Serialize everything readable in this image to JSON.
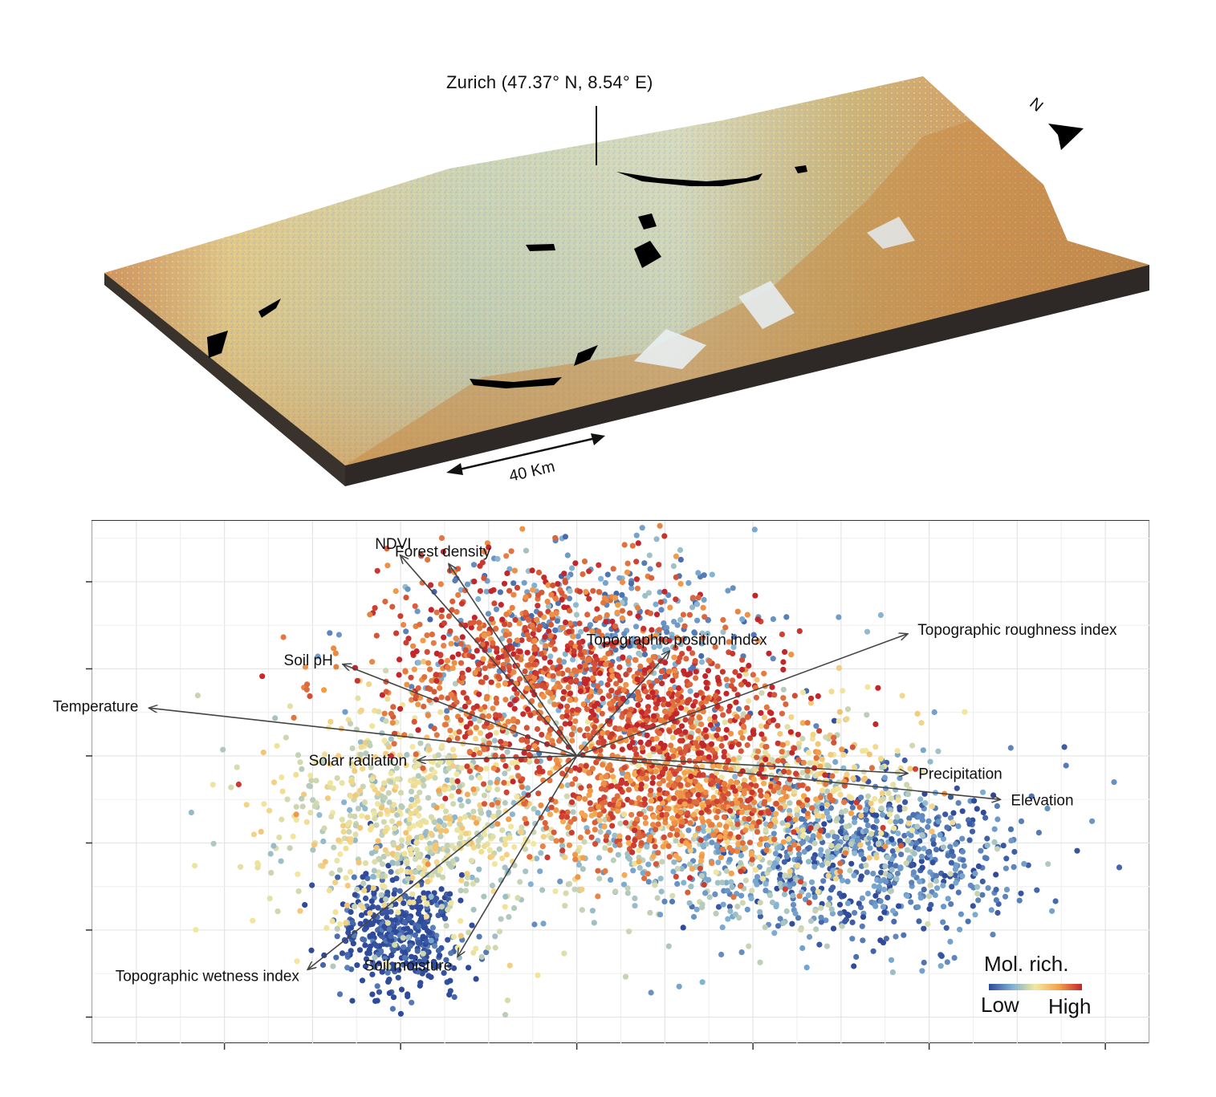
{
  "map": {
    "callout_label": "Zurich (47.37° N, 8.54° E)",
    "scale_label": "40 Km",
    "north_label": "N"
  },
  "legend": {
    "title": "Mol. rich.",
    "low_label": "Low",
    "high_label": "High",
    "colors": [
      "#2f4a9a",
      "#7fb0d4",
      "#f2e8a0",
      "#f4a24a",
      "#c2262b"
    ]
  },
  "chart_data": {
    "type": "scatter",
    "title": "",
    "xlabel": "",
    "ylabel": "",
    "xlim": [
      -5.5,
      6.5
    ],
    "ylim": [
      -3.3,
      2.7
    ],
    "grid": true,
    "origin": [
      0,
      0
    ],
    "vectors": [
      {
        "name": "NDVI",
        "x": -2.0,
        "y": 2.3
      },
      {
        "name": "Forest density",
        "x": -1.45,
        "y": 2.2
      },
      {
        "name": "Topographic position index",
        "x": 1.05,
        "y": 1.2
      },
      {
        "name": "Topographic roughness index",
        "x": 3.75,
        "y": 1.4
      },
      {
        "name": "Soil pH",
        "x": -2.65,
        "y": 1.05
      },
      {
        "name": "Temperature",
        "x": -4.85,
        "y": 0.55
      },
      {
        "name": "Solar radiation",
        "x": -1.8,
        "y": -0.05
      },
      {
        "name": "Precipitation",
        "x": 3.75,
        "y": -0.2
      },
      {
        "name": "Elevation",
        "x": 4.8,
        "y": -0.5
      },
      {
        "name": "Topographic wetness index",
        "x": -3.05,
        "y": -2.45
      },
      {
        "name": "Soil moisture",
        "x": -1.35,
        "y": -2.3
      }
    ],
    "point_groups": [
      {
        "level": 0.0,
        "cx": -2.0,
        "cy": -2.0,
        "sx": 0.35,
        "sy": 0.35,
        "n": 420
      },
      {
        "level": 0.1,
        "cx": 3.3,
        "cy": -1.1,
        "sx": 0.9,
        "sy": 0.5,
        "n": 650
      },
      {
        "level": 0.3,
        "cx": 1.9,
        "cy": -1.2,
        "sx": 1.2,
        "sy": 0.5,
        "n": 420
      },
      {
        "level": 0.2,
        "cx": 0.2,
        "cy": 1.3,
        "sx": 1.0,
        "sy": 0.5,
        "n": 380
      },
      {
        "level": 0.4,
        "cx": -1.6,
        "cy": -0.8,
        "sx": 0.9,
        "sy": 0.7,
        "n": 380
      },
      {
        "level": 0.5,
        "cx": -2.0,
        "cy": -0.7,
        "sx": 0.7,
        "sy": 0.6,
        "n": 430
      },
      {
        "level": 0.5,
        "cx": 2.2,
        "cy": -0.3,
        "sx": 0.9,
        "sy": 0.5,
        "n": 400
      },
      {
        "level": 0.85,
        "cx": 1.2,
        "cy": -0.5,
        "sx": 0.9,
        "sy": 0.4,
        "n": 750
      },
      {
        "level": 0.9,
        "cx": -0.3,
        "cy": 1.0,
        "sx": 1.0,
        "sy": 0.6,
        "n": 1000
      },
      {
        "level": 0.95,
        "cx": 1.2,
        "cy": 0.5,
        "sx": 0.7,
        "sy": 0.4,
        "n": 300
      }
    ]
  }
}
